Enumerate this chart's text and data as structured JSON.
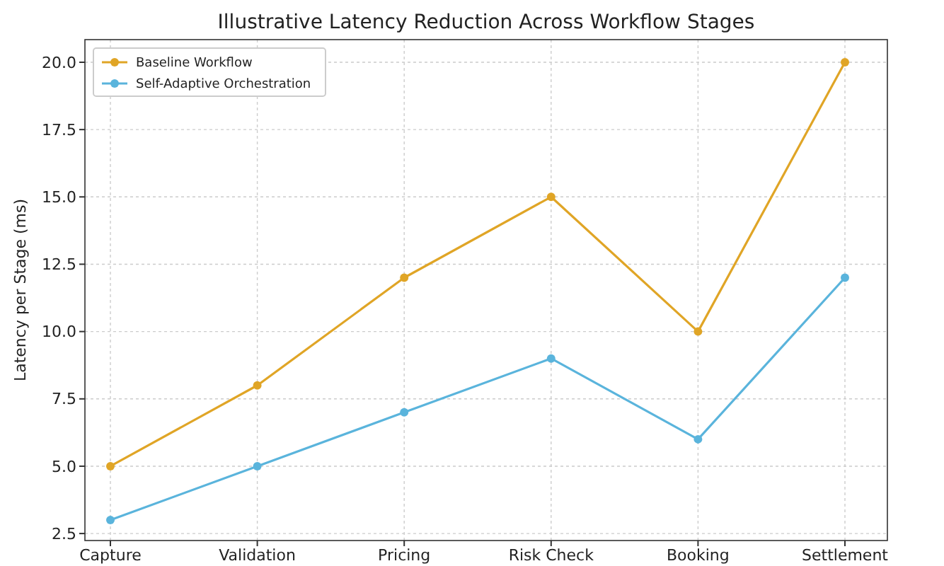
{
  "chart_data": {
    "type": "line",
    "title": "Illustrative Latency Reduction Across Workflow Stages",
    "ylabel": "Latency per Stage (ms)",
    "categories": [
      "Capture",
      "Validation",
      "Pricing",
      "Risk Check",
      "Booking",
      "Settlement"
    ],
    "series": [
      {
        "name": "Baseline Workflow",
        "color": "#e0a526",
        "values": [
          5,
          8,
          12,
          15,
          10,
          20
        ]
      },
      {
        "name": "Self-Adaptive Orchestration",
        "color": "#5ab4dc",
        "values": [
          3,
          5,
          7,
          9,
          6,
          12
        ]
      }
    ],
    "ylim": [
      2.24,
      20.84
    ],
    "yticks": [
      {
        "value": 2.5,
        "label": "2.5"
      },
      {
        "value": 5,
        "label": "5.0"
      },
      {
        "value": 7.5,
        "label": "7.5"
      },
      {
        "value": 10,
        "label": "10.0"
      },
      {
        "value": 12.5,
        "label": "12.5"
      },
      {
        "value": 15,
        "label": "15.0"
      },
      {
        "value": 17.5,
        "label": "17.5"
      },
      {
        "value": 20,
        "label": "20.0"
      }
    ],
    "grid": true,
    "legend": "top left",
    "marker": "circle",
    "line_style": "solid"
  }
}
